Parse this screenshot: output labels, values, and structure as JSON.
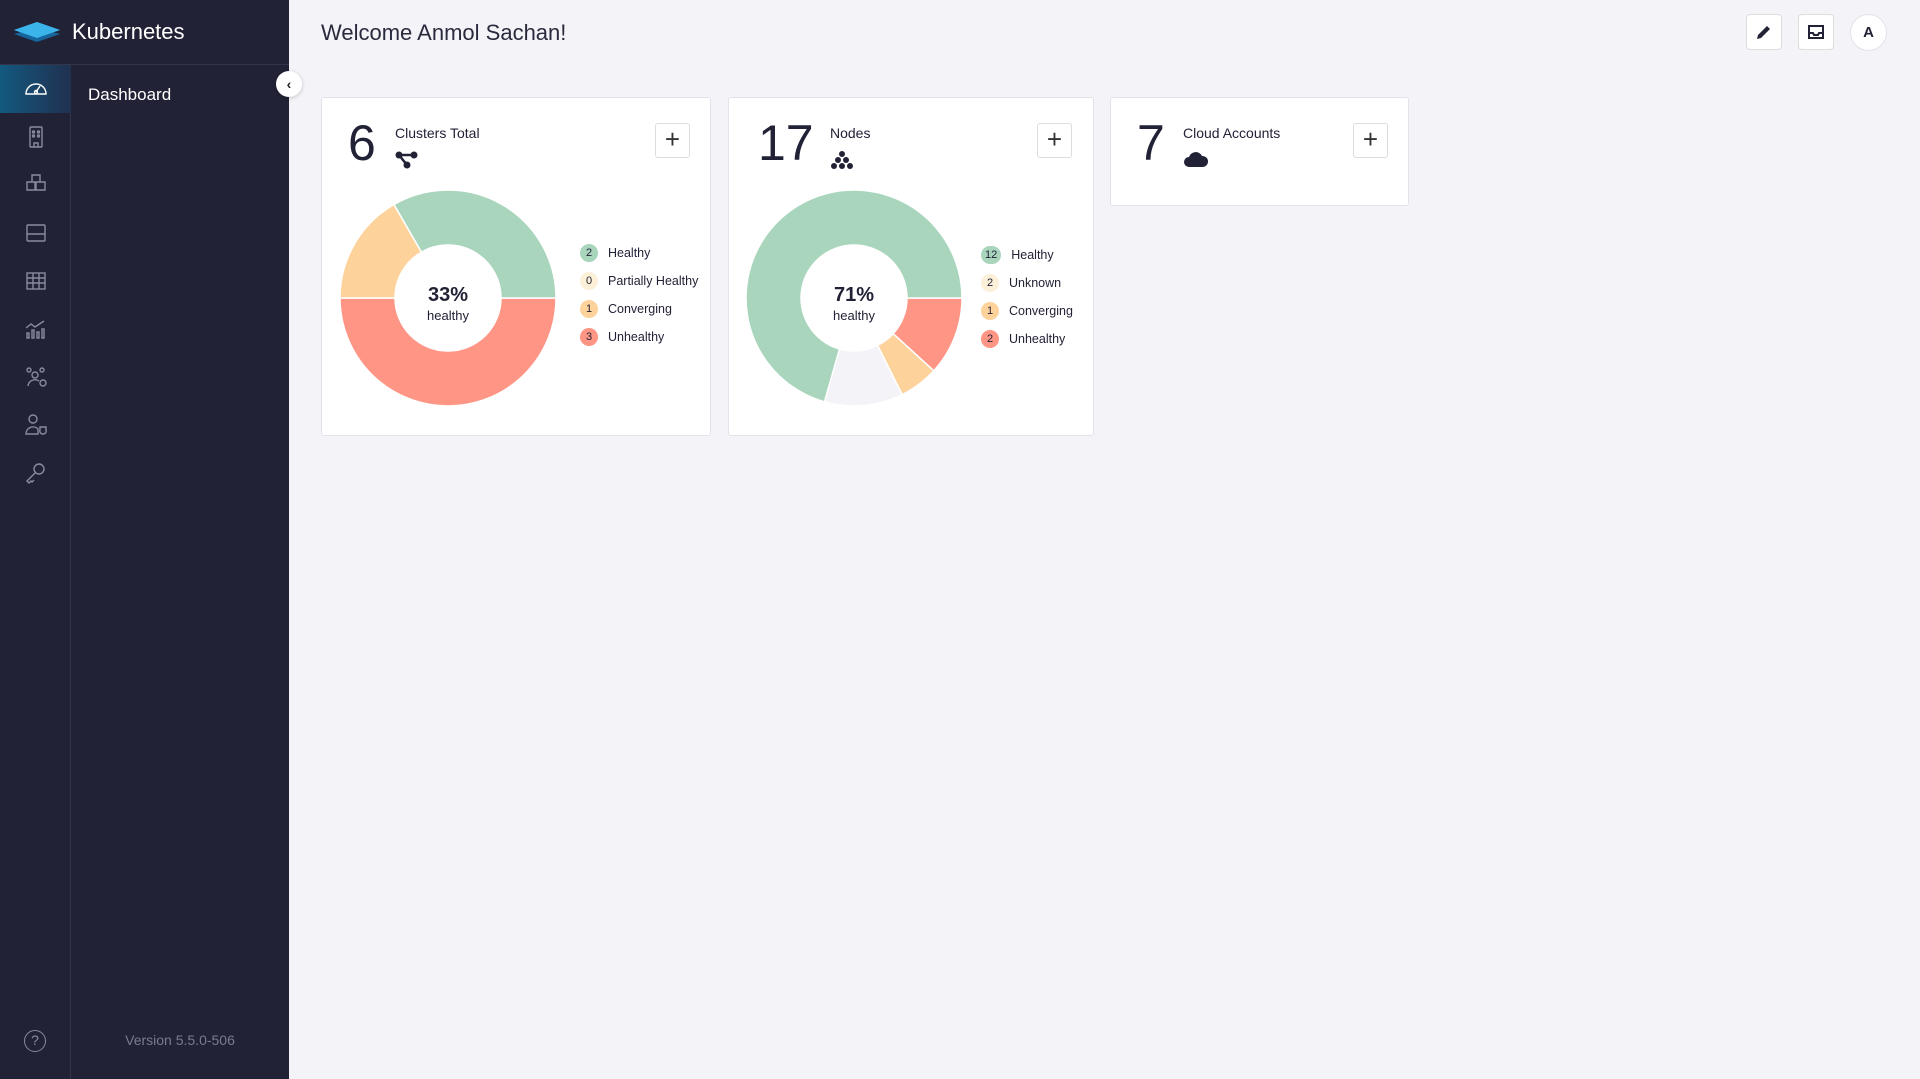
{
  "app": {
    "title": "Kubernetes",
    "version": "Version 5.5.0-506"
  },
  "sidebar": {
    "section_title": "Dashboard",
    "items": [
      {
        "icon": "dashboard-gauge-icon",
        "active": true
      },
      {
        "icon": "building-icon"
      },
      {
        "icon": "cubes-icon"
      },
      {
        "icon": "storage-icon"
      },
      {
        "icon": "grid-icon"
      },
      {
        "icon": "chart-icon"
      },
      {
        "icon": "users-settings-icon"
      },
      {
        "icon": "user-shield-icon"
      },
      {
        "icon": "key-icon"
      }
    ],
    "help_icon": "help-icon"
  },
  "header": {
    "welcome": "Welcome Anmol Sachan!",
    "avatar_letter": "A"
  },
  "colors": {
    "healthy": "#a8d5bc",
    "partial": "#fdd29b",
    "converging": "#fdd29b",
    "unknown": "#f3f3f8",
    "unhealthy": "#fe9585"
  },
  "cards": {
    "clusters": {
      "count": "6",
      "label": "Clusters Total",
      "pct": "33%",
      "pct_label": "healthy",
      "legend": [
        {
          "value": "2",
          "label": "Healthy",
          "key": "healthy"
        },
        {
          "value": "0",
          "label": "Partially Healthy",
          "key": "partial"
        },
        {
          "value": "1",
          "label": "Converging",
          "key": "converging"
        },
        {
          "value": "3",
          "label": "Unhealthy",
          "key": "unhealthy"
        }
      ]
    },
    "nodes": {
      "count": "17",
      "label": "Nodes",
      "pct": "71%",
      "pct_label": "healthy",
      "legend": [
        {
          "value": "12",
          "label": "Healthy",
          "key": "healthy"
        },
        {
          "value": "2",
          "label": "Unknown",
          "key": "unknown"
        },
        {
          "value": "1",
          "label": "Converging",
          "key": "converging"
        },
        {
          "value": "2",
          "label": "Unhealthy",
          "key": "unhealthy"
        }
      ]
    },
    "cloud": {
      "count": "7",
      "label": "Cloud Accounts"
    }
  },
  "add_label": "+"
}
